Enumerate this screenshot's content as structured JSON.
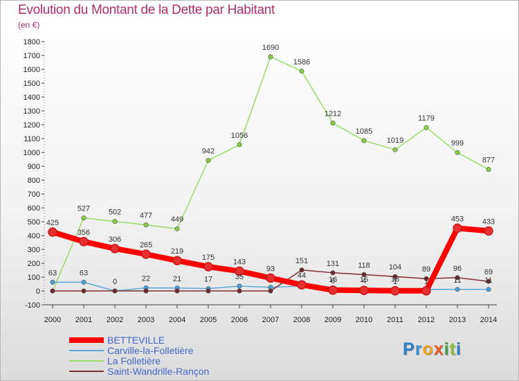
{
  "chart_data": {
    "type": "line",
    "title": "Evolution du Montant de la Dette par Habitant",
    "subtitle": "(en €)",
    "x": [
      "2000",
      "2001",
      "2002",
      "2003",
      "2004",
      "2005",
      "2006",
      "2007",
      "2008",
      "2009",
      "2010",
      "2011",
      "2012",
      "2013",
      "2014"
    ],
    "yticks": [
      -100,
      0,
      100,
      200,
      300,
      400,
      500,
      600,
      700,
      800,
      900,
      1000,
      1100,
      1200,
      1300,
      1400,
      1500,
      1600,
      1700,
      1800
    ],
    "ylim": [
      -100,
      1800
    ],
    "grid": false,
    "series": [
      {
        "name": "BETTEVILLE",
        "color": "#ff0000",
        "point_color": "#e83030",
        "line_width": 8,
        "values": [
          425,
          356,
          306,
          265,
          219,
          175,
          143,
          93,
          44,
          6,
          4,
          1,
          1,
          453,
          433
        ],
        "labels": [
          "425",
          "356",
          "306",
          "265",
          "219",
          "175",
          "143",
          "93",
          "44",
          "6",
          "4",
          "1",
          "1",
          "453",
          "433"
        ]
      },
      {
        "name": "Carville-la-Folletière",
        "color": "#5fa8d6",
        "point_color": "#4aa0d8",
        "line_width": 1.5,
        "values": [
          63,
          63,
          0,
          22,
          21,
          17,
          35,
          26,
          35,
          16,
          15,
          18,
          11,
          11,
          11
        ],
        "labels": [
          "63",
          "63",
          "0",
          "22",
          "21",
          "17",
          "35",
          "",
          "",
          "16",
          "15",
          "18",
          "",
          "11",
          "11"
        ]
      },
      {
        "name": "La Folletière",
        "color": "#99dd66",
        "point_color": "#88cc44",
        "line_width": 1.5,
        "values": [
          0,
          527,
          502,
          477,
          449,
          942,
          1056,
          1690,
          1586,
          1212,
          1085,
          1019,
          1179,
          999,
          877
        ],
        "labels": [
          "",
          "527",
          "502",
          "477",
          "449",
          "942",
          "1056",
          "1690",
          "1586",
          "1212",
          "1085",
          "1019",
          "1179",
          "999",
          "877"
        ]
      },
      {
        "name": "Saint-Wandrille-Rançon",
        "color": "#803030",
        "point_color": "#702828",
        "line_width": 1.5,
        "values": [
          0,
          0,
          0,
          0,
          0,
          0,
          0,
          0,
          151,
          131,
          118,
          104,
          89,
          96,
          69
        ],
        "labels": [
          "",
          "",
          "",
          "",
          "",
          "",
          "",
          "",
          "151",
          "131",
          "118",
          "104",
          "89",
          "96",
          "69"
        ]
      }
    ],
    "legend": "bottom-left"
  },
  "logo": {
    "letters": [
      "P",
      "r",
      "o",
      "x",
      "i",
      "t",
      "i"
    ],
    "colors": [
      "#2f7fc1",
      "#3a8fd0",
      "#f0a020",
      "#e45c24",
      "#3aa048",
      "#8cc040",
      "#2f7fc1"
    ]
  }
}
